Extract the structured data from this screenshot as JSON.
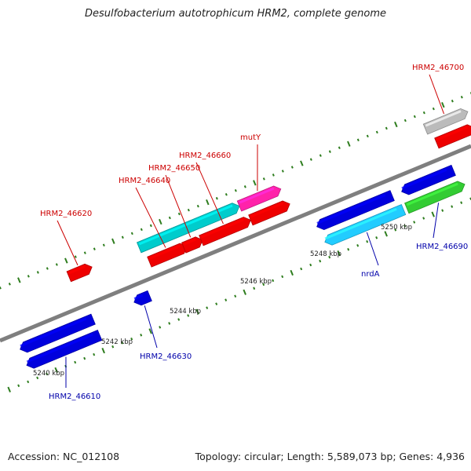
{
  "title": "Desulfobacterium autotrophicum HRM2, complete genome",
  "footer": {
    "accession": "Accession: NC_012108",
    "summary": "Topology: circular; Length: 5,589,073 bp; Genes: 4,936"
  },
  "colors": {
    "backbone": "#7f7f7f",
    "tick": "#2e7d1e",
    "label_top": "#cc0000",
    "label_bottom": "#0000aa",
    "scale_text": "#222222"
  },
  "scale": {
    "unit": "kbp",
    "labels": [
      "5240 kbp",
      "5242 kbp",
      "5244 kbp",
      "5246 kbp",
      "5248 kbp",
      "5250 kbp"
    ]
  },
  "genes": [
    {
      "id": "HRM2_46610",
      "track": -2,
      "start": 0.03,
      "end": 0.185,
      "strand": "-",
      "color": "#0000dd",
      "label": "HRM2_46610"
    },
    {
      "id": "HRM2_46610b",
      "track": -1,
      "start": 0.03,
      "end": 0.185,
      "strand": "-",
      "color": "#0000dd",
      "label": ""
    },
    {
      "id": "HRM2_46620",
      "track": 2,
      "start": 0.173,
      "end": 0.222,
      "strand": "+",
      "color": "#ee0000",
      "label": "HRM2_46620"
    },
    {
      "id": "HRM2_46630",
      "track": -1,
      "start": 0.272,
      "end": 0.305,
      "strand": "-",
      "color": "#0000dd",
      "label": "HRM2_46630"
    },
    {
      "id": "HRM2_46640",
      "track": 1,
      "start": 0.33,
      "end": 0.41,
      "strand": "+",
      "color": "#ee0000",
      "label": "HRM2_46640"
    },
    {
      "id": "HRM2_46650",
      "track": 1,
      "start": 0.403,
      "end": 0.443,
      "strand": "+",
      "color": "#ee0000",
      "label": "HRM2_46650"
    },
    {
      "id": "HRM2_46660",
      "track": 1,
      "start": 0.44,
      "end": 0.545,
      "strand": "+",
      "color": "#ee0000",
      "label": "HRM2_46660"
    },
    {
      "id": "HRM2_46660b",
      "track": 2,
      "start": 0.322,
      "end": 0.535,
      "strand": "+",
      "color": "#00cccc",
      "label": ""
    },
    {
      "id": "mutY",
      "track": 1,
      "start": 0.545,
      "end": 0.628,
      "strand": "+",
      "color": "#ee0000",
      "label": ""
    },
    {
      "id": "mutYb",
      "track": 2,
      "start": 0.535,
      "end": 0.623,
      "strand": "+",
      "color": "#ff22aa",
      "label": "mutY"
    },
    {
      "id": "nrdA",
      "track": -2,
      "start": 0.663,
      "end": 0.83,
      "strand": "-",
      "color": "#22ccff",
      "label": "nrdA"
    },
    {
      "id": "nrdAb",
      "track": -1,
      "start": 0.66,
      "end": 0.82,
      "strand": "-",
      "color": "#0000dd",
      "label": ""
    },
    {
      "id": "HRM2_46690",
      "track": -2,
      "start": 0.837,
      "end": 0.96,
      "strand": "+",
      "color": "#33cc33",
      "label": "HRM2_46690"
    },
    {
      "id": "HRM2_46690b",
      "track": -1,
      "start": 0.84,
      "end": 0.95,
      "strand": "-",
      "color": "#0000dd",
      "label": ""
    },
    {
      "id": "HRM2_46700",
      "track": 1,
      "start": 0.94,
      "end": 1.02,
      "strand": "+",
      "color": "#ee0000",
      "label": ""
    },
    {
      "id": "HRM2_46700b",
      "track": 2,
      "start": 0.93,
      "end": 1.02,
      "strand": "+",
      "color": "#bbbbbb",
      "label": "HRM2_46700"
    }
  ]
}
